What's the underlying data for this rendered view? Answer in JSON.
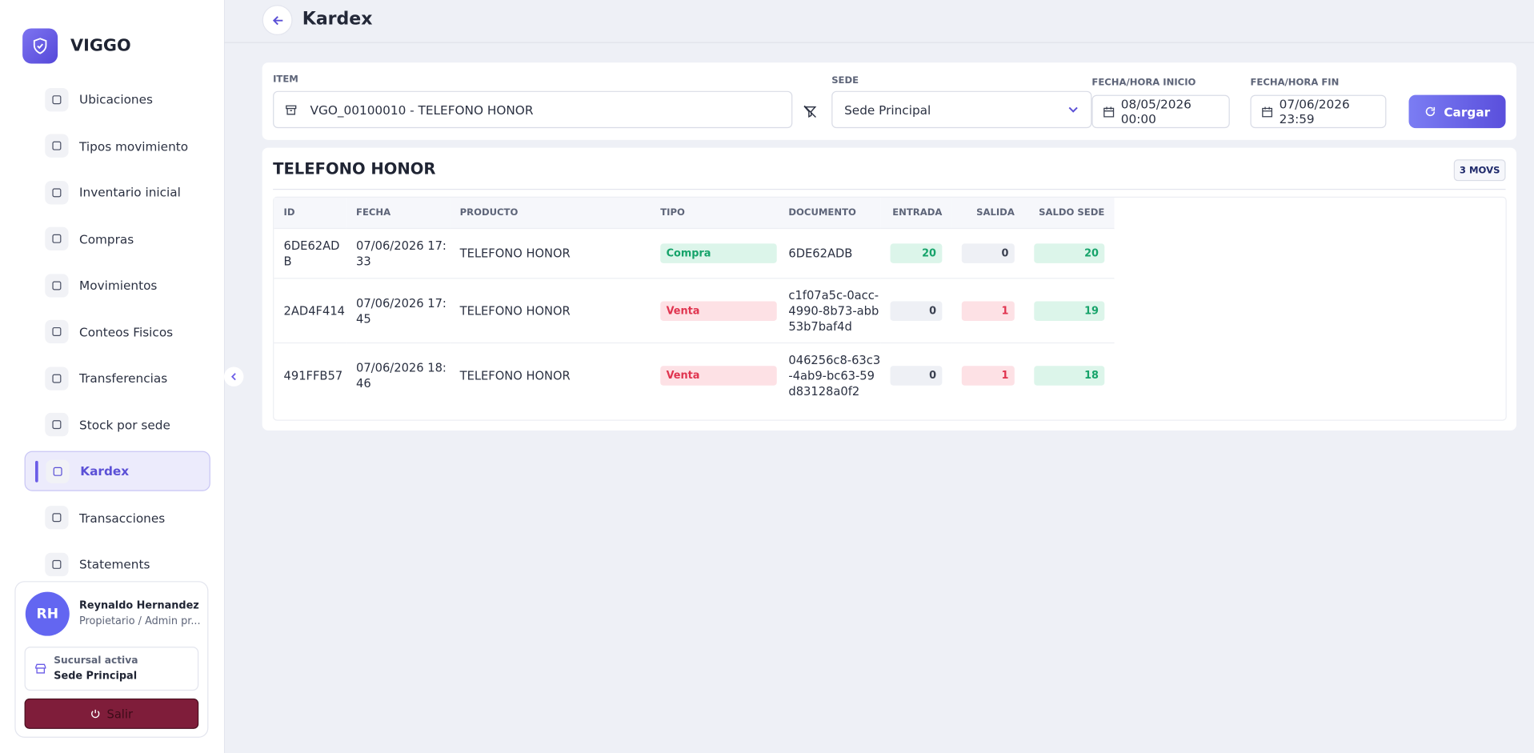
{
  "brand": "VIGGO",
  "nav": [
    "Ubicaciones",
    "Tipos movimiento",
    "Inventario inicial",
    "Compras",
    "Movimientos",
    "Conteos Fisicos",
    "Transferencias",
    "Stock por sede",
    "Kardex",
    "Transacciones",
    "Statements"
  ],
  "active_nav": 8,
  "user": {
    "initials": "RH",
    "name": "Reynaldo Hernandez",
    "role": "Propietario / Admin pr...",
    "branch_label": "Sucursal activa",
    "branch": "Sede Principal",
    "logout": "Salir"
  },
  "header": {
    "title": "Kardex"
  },
  "filters": {
    "item_label": "ITEM",
    "item": "VGO_00100010 - TELEFONO HONOR",
    "sede_label": "SEDE",
    "sede": "Sede Principal",
    "start_label": "FECHA/HORA INICIO",
    "start": "08/05/2026 00:00",
    "end_label": "FECHA/HORA FIN",
    "end": "07/06/2026 23:59",
    "load": "Cargar"
  },
  "result": {
    "title": "TELEFONO HONOR",
    "badge": "3 MOVS"
  },
  "table": {
    "columns": [
      "ID",
      "FECHA",
      "PRODUCTO",
      "TIPO",
      "DOCUMENTO",
      "ENTRADA",
      "SALIDA",
      "SALDO SEDE"
    ],
    "rows": [
      [
        "6DE62ADB",
        "07/06/2026 17:33",
        "TELEFONO HONOR",
        "Compra",
        "6DE62ADB",
        "20",
        "0",
        "20"
      ],
      [
        "2AD4F414",
        "07/06/2026 17:45",
        "TELEFONO HONOR",
        "Venta",
        "c1f07a5c-0acc-4990-8b73-abb53b7baf4d",
        "0",
        "1",
        "19"
      ],
      [
        "491FFB57",
        "07/06/2026 18:46",
        "TELEFONO HONOR",
        "Venta",
        "046256c8-63c3-4ab9-bc63-59d83128a0f2",
        "0",
        "1",
        "18"
      ]
    ]
  }
}
